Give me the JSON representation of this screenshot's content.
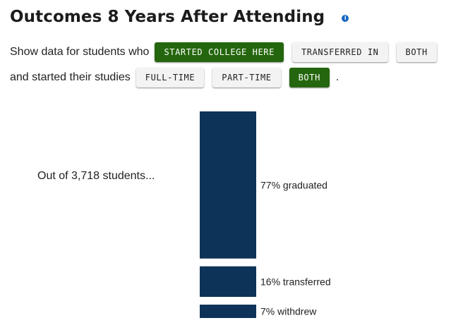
{
  "header": {
    "title": "Outcomes 8 Years After Attending",
    "info_icon": "info-icon",
    "accent": "#1466c0"
  },
  "filters": {
    "students_prompt": "Show data for students who",
    "student_options": [
      {
        "label": "STARTED COLLEGE HERE",
        "selected": true
      },
      {
        "label": "TRANSFERRED IN",
        "selected": false
      },
      {
        "label": "BOTH",
        "selected": false
      }
    ],
    "studies_prompt": "and started their studies",
    "study_options": [
      {
        "label": "FULL-TIME",
        "selected": false
      },
      {
        "label": "PART-TIME",
        "selected": false
      },
      {
        "label": "BOTH",
        "selected": true
      }
    ],
    "trailing_period": ".",
    "active_color": "#24660d"
  },
  "summary": {
    "out_of": "Out of 3,718 students..."
  },
  "chart_data": {
    "type": "bar",
    "orientation": "stacked-vertical",
    "bar_color": "#0e3358",
    "categories": [
      "graduated",
      "transferred",
      "withdrew"
    ],
    "values": [
      77,
      16,
      7
    ],
    "labels": [
      "77% graduated",
      "16% transferred",
      "7% withdrew"
    ]
  }
}
